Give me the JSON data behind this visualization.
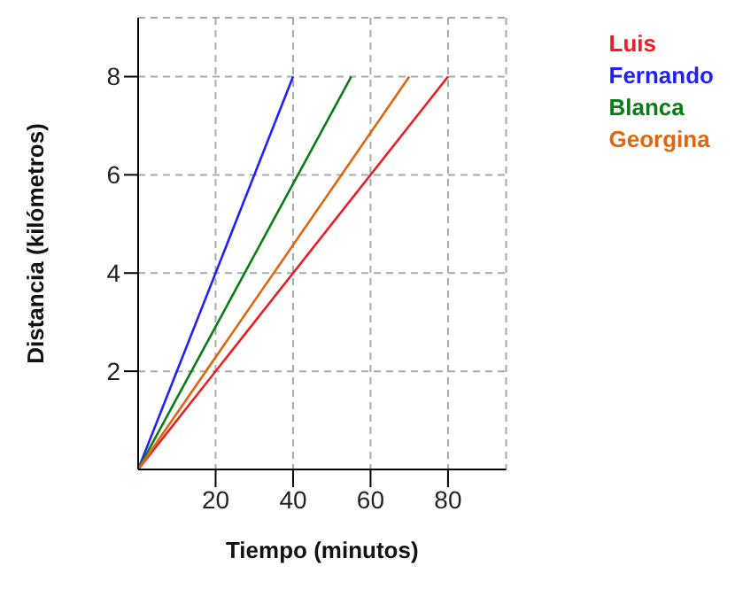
{
  "chart_data": {
    "type": "line",
    "xlabel": "Tiempo (minutos)",
    "ylabel": "Distancia (kilómetros)",
    "xlim": [
      0,
      95
    ],
    "ylim": [
      0,
      9.2
    ],
    "xticks": [
      20,
      40,
      60,
      80
    ],
    "yticks": [
      2,
      4,
      6,
      8
    ],
    "grid": true,
    "legend": "top right",
    "marker": "none",
    "line_style": "solid",
    "series": [
      {
        "name": "Luis",
        "color": "#ee1c25",
        "x": [
          0,
          80
        ],
        "values": [
          0,
          8
        ]
      },
      {
        "name": "Fernando",
        "color": "#1f1fff",
        "x": [
          0,
          40
        ],
        "values": [
          0,
          8
        ]
      },
      {
        "name": "Blanca",
        "color": "#0b7d16",
        "x": [
          0,
          55
        ],
        "values": [
          0,
          8
        ]
      },
      {
        "name": "Georgina",
        "color": "#e0670f",
        "x": [
          0,
          70
        ],
        "values": [
          0,
          8
        ]
      }
    ]
  }
}
